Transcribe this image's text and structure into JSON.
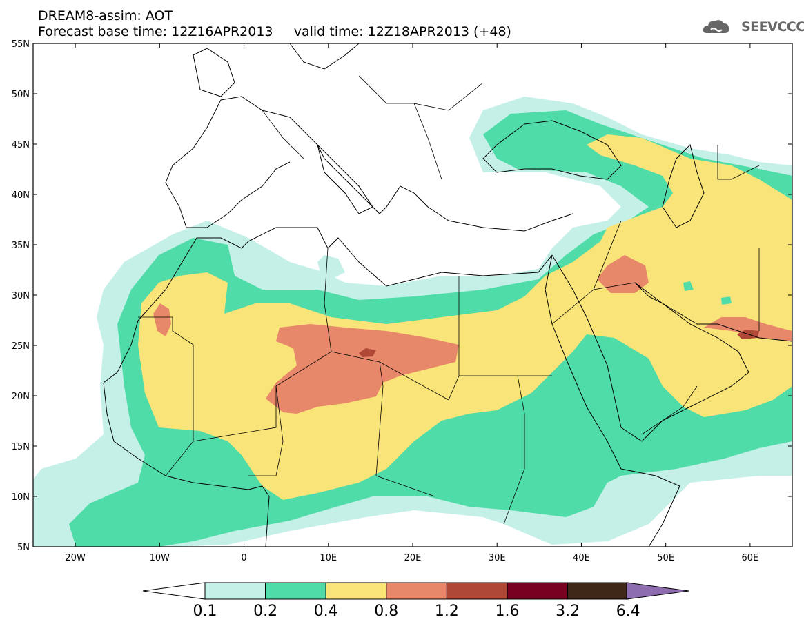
{
  "header": {
    "title_line1": "DREAM8-assim: AOT",
    "title_line2": "Forecast base time: 12Z16APR2013     valid time: 12Z18APR2013 (+48)",
    "logo_text": "SEEVCCC"
  },
  "map": {
    "lon_range": [
      -25,
      65
    ],
    "lat_range": [
      5,
      55
    ],
    "lat_ticks": [
      "55N",
      "50N",
      "45N",
      "40N",
      "35N",
      "30N",
      "25N",
      "20N",
      "15N",
      "10N",
      "5N"
    ],
    "lat_values": [
      55,
      50,
      45,
      40,
      35,
      30,
      25,
      20,
      15,
      10,
      5
    ],
    "lon_ticks": [
      "20W",
      "10W",
      "0",
      "10E",
      "20E",
      "30E",
      "40E",
      "50E",
      "60E"
    ],
    "lon_values": [
      -20,
      -10,
      0,
      10,
      20,
      30,
      40,
      50,
      60
    ]
  },
  "colorbar": {
    "labels": [
      "0.1",
      "0.2",
      "0.4",
      "0.8",
      "1.2",
      "1.6",
      "3.2",
      "6.4"
    ],
    "colors": [
      "#ffffff",
      "#c4f0e8",
      "#50dca8",
      "#f8e478",
      "#e8886a",
      "#b04838",
      "#780020",
      "#402818",
      "#8e6cb0"
    ]
  }
}
